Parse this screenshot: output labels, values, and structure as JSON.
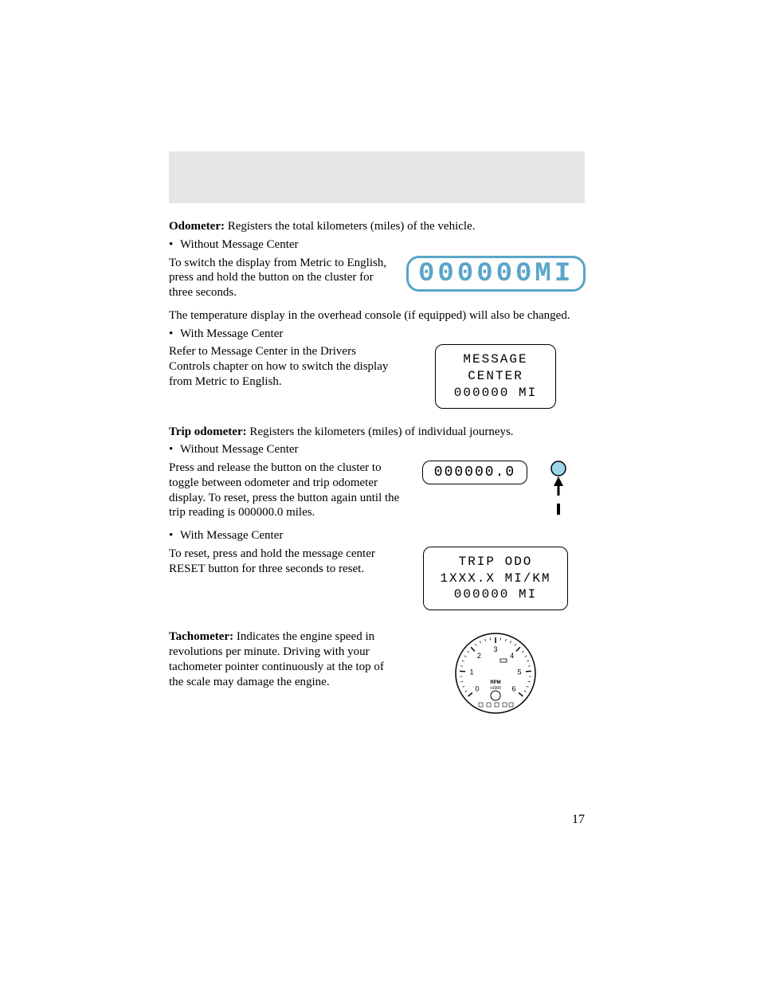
{
  "colors": {
    "blue": "#5aa5c9",
    "header_bg": "#e5e5e5",
    "text": "#000000",
    "marker_fill": "#9dd4e8"
  },
  "odometer": {
    "heading_label": "Odometer:",
    "heading_rest": " Registers the total kilometers (miles) of the vehicle.",
    "without_label": "Without Message Center",
    "without_text": "To switch the display from Metric to English, press and hold the button on the cluster for three seconds.",
    "temp_note": "The temperature display in the overhead console (if equipped) will also be changed.",
    "with_label": "With Message Center",
    "with_text": "Refer to Message Center in the Drivers Controls chapter on how to switch the display from Metric to English.",
    "display_large": "000000MI",
    "msg_box": {
      "line1": "MESSAGE",
      "line2": "CENTER",
      "line3": "000000 MI"
    }
  },
  "trip": {
    "heading_label": "Trip odometer:",
    "heading_rest": " Registers the kilometers (miles) of individual journeys.",
    "without_label": "Without Message Center",
    "without_text": "Press and release the button on the cluster to toggle between odometer and trip odometer display. To reset, press the button again until the trip reading is 000000.0 miles.",
    "with_label": "With Message Center",
    "with_text": "To reset, press and hold the message center RESET button for three seconds to reset.",
    "display_small": "000000.0",
    "msg_box": {
      "line1": "TRIP ODO",
      "line2": "1XXX.X MI/KM",
      "line3": "000000 MI"
    }
  },
  "tach": {
    "heading_label": "Tachometer:",
    "heading_rest": " Indicates the engine speed in revolutions per minute. Driving with your tachometer pointer continuously at the top of the scale may damage the engine.",
    "gauge": {
      "ticks": [
        "0",
        "1",
        "2",
        "3",
        "4",
        "5",
        "6"
      ],
      "unit1": "RPM",
      "unit2": "x1000",
      "tick_positions_deg": [
        -130,
        -86.7,
        -43.3,
        0,
        43.3,
        86.7,
        130
      ],
      "radius": 45,
      "tick_outer": 45,
      "tick_inner_major": 38,
      "tick_inner_minor": 42,
      "label_radius": 30
    }
  },
  "page_number": "17"
}
